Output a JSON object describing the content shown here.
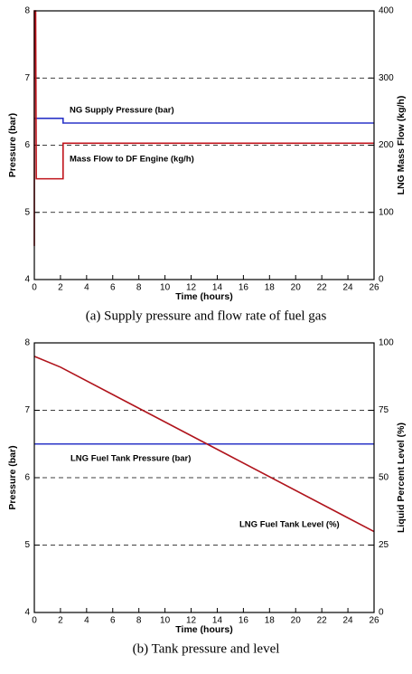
{
  "chart_data": [
    {
      "type": "line",
      "caption": "(a) Supply pressure and flow rate of fuel gas",
      "xlabel": "Time (hours)",
      "ylabel": "Pressure (bar)",
      "y2label": "LNG Mass Flow (kg/h)",
      "xlim": [
        0,
        26
      ],
      "xticks": [
        0,
        2,
        4,
        6,
        8,
        10,
        12,
        14,
        16,
        18,
        20,
        22,
        24,
        26
      ],
      "ylim": [
        4,
        8
      ],
      "yticks": [
        4,
        5,
        6,
        7,
        8
      ],
      "y2lim": [
        0,
        400
      ],
      "y2ticks": [
        0,
        100,
        200,
        300,
        400
      ],
      "grid": true,
      "series": [
        {
          "name": "NG Supply Pressure (bar)",
          "color": "#2b35c8",
          "x": [
            0,
            2.2,
            2.2,
            26
          ],
          "values": [
            6.4,
            6.4,
            6.33,
            6.33
          ]
        },
        {
          "name": "Mass Flow to DF Engine (kg/h)",
          "color": "#c0141c",
          "axis": "y2",
          "x": [
            0,
            0,
            0.1,
            0.15,
            2.2,
            2.2,
            26
          ],
          "values": [
            50,
            400,
            400,
            150,
            150,
            203,
            203
          ]
        }
      ]
    },
    {
      "type": "line",
      "caption": "(b) Tank pressure and level",
      "xlabel": "Time (hours)",
      "ylabel": "Pressure (bar)",
      "y2label": "Liquid Percent Level (%)",
      "xlim": [
        0,
        26
      ],
      "xticks": [
        0,
        2,
        4,
        6,
        8,
        10,
        12,
        14,
        16,
        18,
        20,
        22,
        24,
        26
      ],
      "ylim": [
        4,
        8
      ],
      "yticks": [
        4,
        5,
        6,
        7,
        8
      ],
      "y2lim": [
        0,
        100
      ],
      "y2ticks": [
        0,
        25,
        50,
        75,
        100
      ],
      "grid": true,
      "series": [
        {
          "name": "LNG Fuel Tank Pressure (bar)",
          "color": "#2b35c8",
          "x": [
            0,
            26
          ],
          "values": [
            6.5,
            6.5
          ]
        },
        {
          "name": "LNG Fuel Tank Level (%)",
          "color": "#b0141c",
          "axis": "y2",
          "x": [
            0,
            2,
            26
          ],
          "values": [
            95,
            91,
            30
          ]
        }
      ]
    }
  ]
}
